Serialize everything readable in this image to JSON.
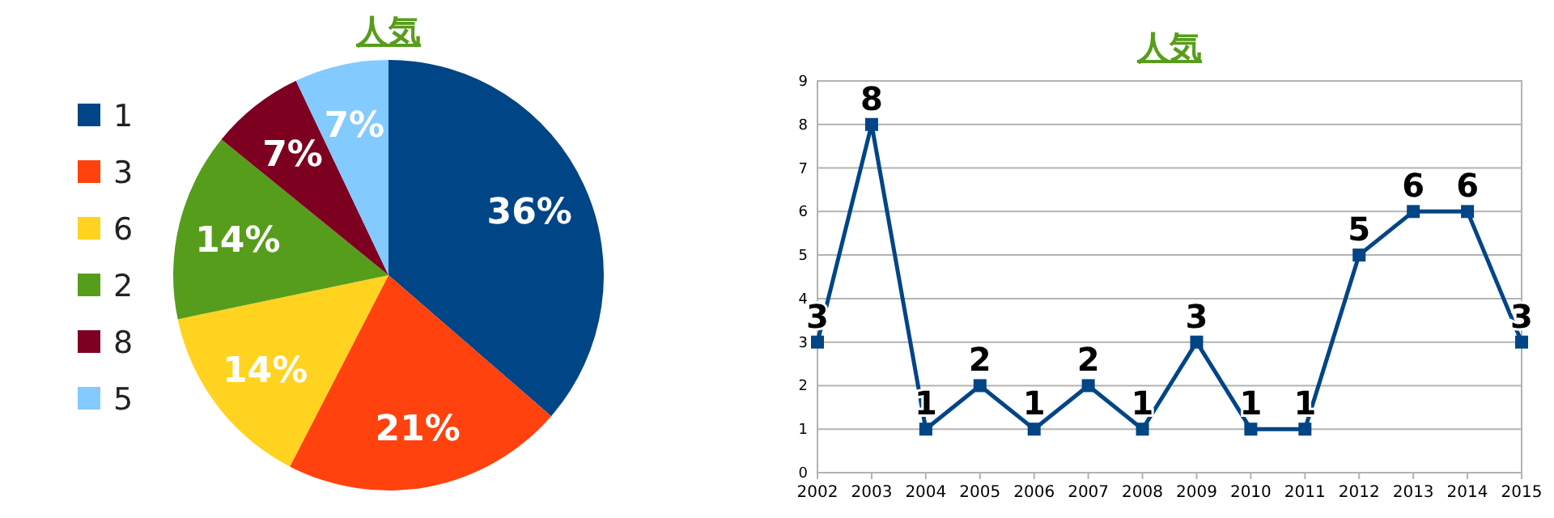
{
  "chart_data": [
    {
      "type": "pie",
      "title": "人気",
      "categories": [
        "1",
        "3",
        "6",
        "2",
        "8",
        "5"
      ],
      "values": [
        36,
        21,
        14,
        14,
        7,
        7
      ],
      "colors": [
        "#004586",
        "#ff420e",
        "#ffd320",
        "#579d1c",
        "#7e0021",
        "#83caff"
      ],
      "value_labels": [
        "36%",
        "21%",
        "14%",
        "14%",
        "7%",
        "7%"
      ],
      "legend": "left"
    },
    {
      "type": "line",
      "title": "人気",
      "categories": [
        "2002",
        "2003",
        "2004",
        "2005",
        "2006",
        "2007",
        "2008",
        "2009",
        "2010",
        "2011",
        "2012",
        "2013",
        "2014",
        "2015"
      ],
      "series": [
        {
          "color": "#004586",
          "values": [
            3,
            8,
            1,
            2,
            1,
            2,
            1,
            3,
            1,
            1,
            5,
            6,
            6,
            3
          ]
        }
      ],
      "ylim": [
        0,
        9
      ],
      "yticks": [
        0,
        1,
        2,
        3,
        4,
        5,
        6,
        7,
        8,
        9
      ],
      "grid": "y",
      "marker": "square",
      "line_style": "solid",
      "data_labels": true,
      "legend": false
    }
  ]
}
